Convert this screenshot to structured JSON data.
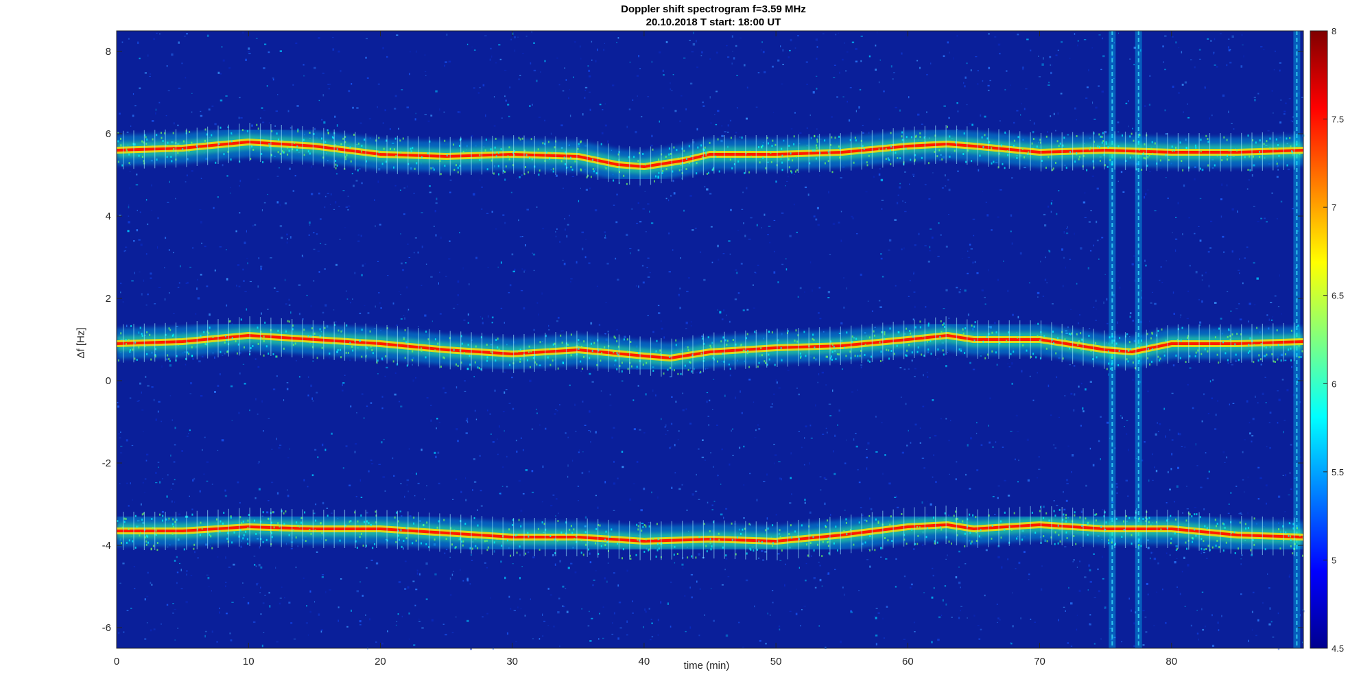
{
  "chart_data": {
    "type": "heatmap",
    "title": "Doppler shift spectrogram f=3.59 MHz",
    "subtitle": "20.10.2018   T start: 18:00 UT",
    "xlabel": "time (min)",
    "ylabel": "Δf [Hz]",
    "xlim": [
      0,
      90
    ],
    "ylim": [
      -6.5,
      8.5
    ],
    "xticks": [
      0,
      10,
      20,
      30,
      40,
      50,
      60,
      70,
      80
    ],
    "yticks": [
      8,
      6,
      4,
      2,
      0,
      -2,
      -4,
      -6
    ],
    "colorbar": {
      "min": 4.5,
      "max": 8,
      "ticks": [
        8,
        7.5,
        7,
        6.5,
        6,
        5.5,
        5,
        4.5
      ],
      "colormap": "jet"
    },
    "traces": [
      {
        "x": [
          0,
          5,
          10,
          15,
          20,
          25,
          30,
          35,
          38,
          40,
          43,
          45,
          50,
          55,
          60,
          63,
          65,
          70,
          75,
          80,
          85,
          90
        ],
        "y": [
          5.6,
          5.65,
          5.8,
          5.7,
          5.5,
          5.45,
          5.5,
          5.45,
          5.25,
          5.2,
          5.35,
          5.5,
          5.5,
          5.55,
          5.7,
          5.75,
          5.7,
          5.55,
          5.6,
          5.55,
          5.55,
          5.6
        ]
      },
      {
        "x": [
          0,
          5,
          10,
          15,
          20,
          25,
          30,
          35,
          40,
          42,
          45,
          50,
          55,
          60,
          63,
          65,
          70,
          75,
          77,
          80,
          85,
          90
        ],
        "y": [
          0.9,
          0.95,
          1.1,
          1.0,
          0.9,
          0.75,
          0.65,
          0.75,
          0.6,
          0.55,
          0.7,
          0.8,
          0.85,
          1.0,
          1.1,
          1.0,
          1.0,
          0.75,
          0.7,
          0.9,
          0.9,
          0.95
        ]
      },
      {
        "x": [
          0,
          5,
          10,
          15,
          20,
          25,
          30,
          35,
          40,
          45,
          50,
          55,
          60,
          63,
          65,
          70,
          75,
          80,
          85,
          90
        ],
        "y": [
          -3.65,
          -3.65,
          -3.55,
          -3.6,
          -3.6,
          -3.7,
          -3.8,
          -3.8,
          -3.9,
          -3.85,
          -3.9,
          -3.75,
          -3.55,
          -3.5,
          -3.6,
          -3.5,
          -3.6,
          -3.6,
          -3.75,
          -3.8
        ]
      }
    ],
    "interference_lines_x": [
      75.5,
      77.5,
      89.5
    ]
  }
}
